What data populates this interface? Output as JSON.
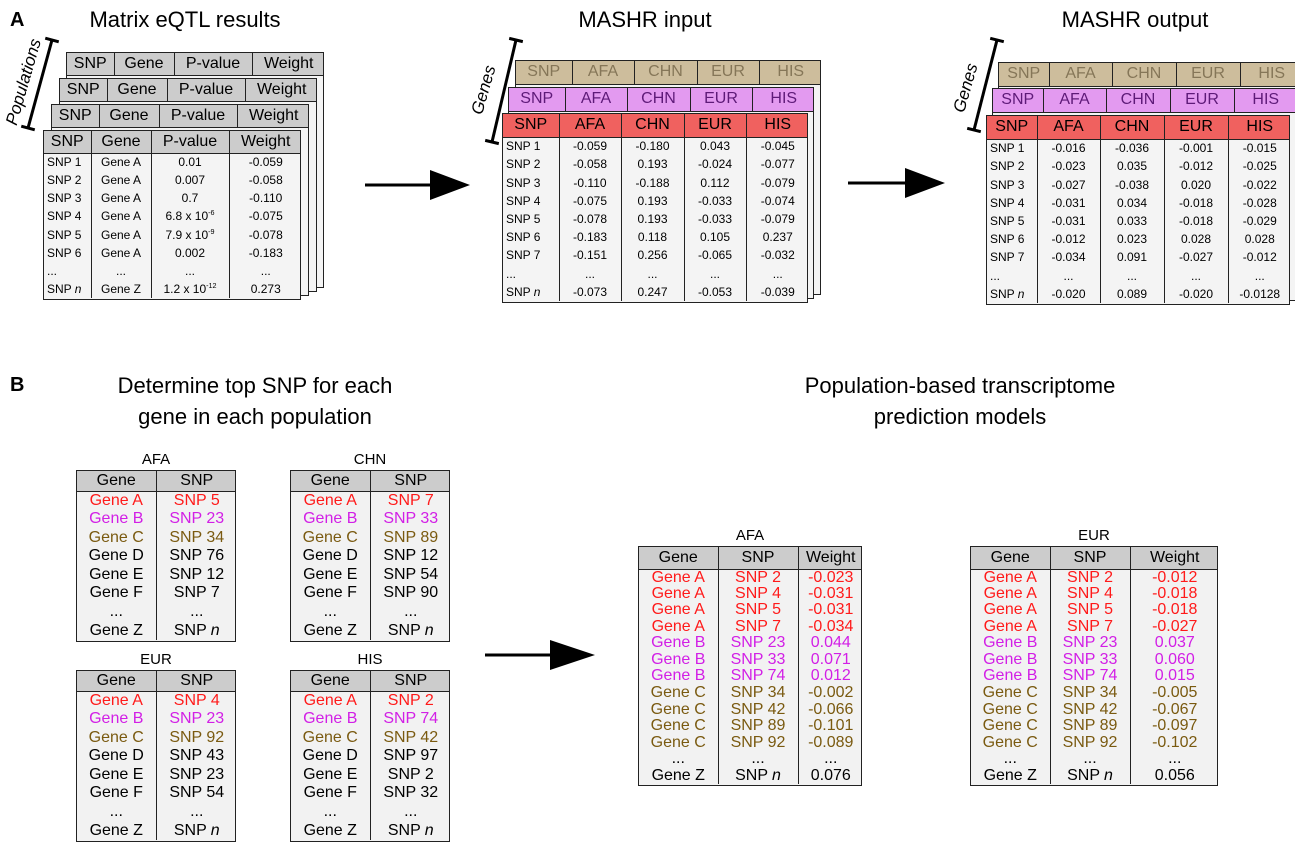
{
  "panel_a": {
    "label": "A",
    "matrix": {
      "title": "Matrix eQTL results",
      "side_label": "Populations",
      "headers": [
        [
          "SNP",
          "Gene",
          "P-value",
          "Weight"
        ],
        [
          "SNP",
          "Gene",
          "P-value",
          "Weight"
        ],
        [
          "SNP",
          "Gene",
          "P-value",
          "Weight"
        ],
        [
          "SNP",
          "Gene",
          "P-value",
          "Weight"
        ]
      ],
      "rows": [
        [
          "SNP 1",
          "Gene A",
          "0.01",
          "-0.059"
        ],
        [
          "SNP 2",
          "Gene A",
          "0.007",
          "-0.058"
        ],
        [
          "SNP 3",
          "Gene A",
          "0.7",
          "-0.110"
        ],
        [
          "SNP 4",
          "Gene A",
          {
            "base": "6.8 x 10",
            "sup": "-6"
          },
          "-0.075"
        ],
        [
          "SNP 5",
          "Gene A",
          {
            "base": "7.9 x 10",
            "sup": "-9"
          },
          "-0.078"
        ],
        [
          "SNP 6",
          "Gene A",
          "0.002",
          "-0.183"
        ],
        [
          "...",
          "...",
          "...",
          "..."
        ],
        [
          {
            "text": "SNP",
            "italic": "n"
          },
          "Gene Z",
          {
            "base": "1.2 x 10",
            "sup": "-12"
          },
          "0.273"
        ]
      ]
    },
    "mashr_input": {
      "title": "MASHR input",
      "side_label": "Genes",
      "headers": [
        [
          "SNP",
          "AFA",
          "CHN",
          "EUR",
          "HIS"
        ],
        [
          "SNP",
          "AFA",
          "CHN",
          "EUR",
          "HIS"
        ],
        [
          "SNP",
          "AFA",
          "CHN",
          "EUR",
          "HIS"
        ]
      ],
      "header_colors": [
        "#cdbd9c",
        "#e39af0",
        "#f0615f"
      ],
      "header_text_colors": [
        "#857658",
        "#5e1a78",
        "#000000"
      ],
      "rows": [
        [
          "SNP 1",
          "-0.059",
          "-0.180",
          "0.043",
          "-0.045"
        ],
        [
          "SNP 2",
          "-0.058",
          "0.193",
          "-0.024",
          "-0.077"
        ],
        [
          "SNP 3",
          "-0.110",
          "-0.188",
          "0.112",
          "-0.079"
        ],
        [
          "SNP 4",
          "-0.075",
          "0.193",
          "-0.033",
          "-0.074"
        ],
        [
          "SNP 5",
          "-0.078",
          "0.193",
          "-0.033",
          "-0.079"
        ],
        [
          "SNP 6",
          "-0.183",
          "0.118",
          "0.105",
          "0.237"
        ],
        [
          "SNP 7",
          "-0.151",
          "0.256",
          "-0.065",
          "-0.032"
        ],
        [
          "...",
          "...",
          "...",
          "...",
          "..."
        ],
        [
          {
            "text": "SNP",
            "italic": "n"
          },
          "-0.073",
          "0.247",
          "-0.053",
          "-0.039"
        ]
      ]
    },
    "mashr_output": {
      "title": "MASHR output",
      "side_label": "Genes",
      "headers": [
        [
          "SNP",
          "AFA",
          "CHN",
          "EUR",
          "HIS"
        ],
        [
          "SNP",
          "AFA",
          "CHN",
          "EUR",
          "HIS"
        ],
        [
          "SNP",
          "AFA",
          "CHN",
          "EUR",
          "HIS"
        ]
      ],
      "header_colors": [
        "#cdbd9c",
        "#e39af0",
        "#f0615f"
      ],
      "header_text_colors": [
        "#857658",
        "#5e1a78",
        "#000000"
      ],
      "rows": [
        [
          "SNP 1",
          "-0.016",
          "-0.036",
          "-0.001",
          "-0.015"
        ],
        [
          "SNP 2",
          "-0.023",
          "0.035",
          "-0.012",
          "-0.025"
        ],
        [
          "SNP 3",
          "-0.027",
          "-0.038",
          "0.020",
          "-0.022"
        ],
        [
          "SNP 4",
          "-0.031",
          "0.034",
          "-0.018",
          "-0.028"
        ],
        [
          "SNP 5",
          "-0.031",
          "0.033",
          "-0.018",
          "-0.029"
        ],
        [
          "SNP 6",
          "-0.012",
          "0.023",
          "0.028",
          "0.028"
        ],
        [
          "SNP 7",
          "-0.034",
          "0.091",
          "-0.027",
          "-0.012"
        ],
        [
          "...",
          "...",
          "...",
          "...",
          "..."
        ],
        [
          {
            "text": "SNP",
            "italic": "n"
          },
          "-0.020",
          "0.089",
          "-0.020",
          "-0.0128"
        ]
      ]
    }
  },
  "panel_b": {
    "label": "B",
    "title_lines": [
      "Determine top SNP for each",
      "gene in each population"
    ],
    "top_snp_tables": [
      {
        "name": "AFA",
        "headers": [
          "Gene",
          "SNP"
        ],
        "rows": [
          [
            "Gene A",
            "SNP 5"
          ],
          [
            "Gene B",
            "SNP 23"
          ],
          [
            "Gene C",
            "SNP 34"
          ],
          [
            "Gene D",
            "SNP 76"
          ],
          [
            "Gene E",
            "SNP 12"
          ],
          [
            "Gene F",
            "SNP 7"
          ],
          [
            "...",
            "..."
          ],
          [
            "Gene Z",
            {
              "text": "SNP",
              "italic": "n"
            }
          ]
        ],
        "row_colors": [
          "#ff1a1a",
          "#d21fe6",
          "#7a5a10",
          "#000000",
          "#000000",
          "#000000",
          "#000000",
          "#000000"
        ]
      },
      {
        "name": "CHN",
        "headers": [
          "Gene",
          "SNP"
        ],
        "rows": [
          [
            "Gene A",
            "SNP 7"
          ],
          [
            "Gene B",
            "SNP 33"
          ],
          [
            "Gene C",
            "SNP 89"
          ],
          [
            "Gene D",
            "SNP 12"
          ],
          [
            "Gene E",
            "SNP 54"
          ],
          [
            "Gene F",
            "SNP 90"
          ],
          [
            "...",
            "..."
          ],
          [
            "Gene Z",
            {
              "text": "SNP",
              "italic": "n"
            }
          ]
        ],
        "row_colors": [
          "#ff1a1a",
          "#d21fe6",
          "#7a5a10",
          "#000000",
          "#000000",
          "#000000",
          "#000000",
          "#000000"
        ]
      },
      {
        "name": "EUR",
        "headers": [
          "Gene",
          "SNP"
        ],
        "rows": [
          [
            "Gene A",
            "SNP 4"
          ],
          [
            "Gene B",
            "SNP 23"
          ],
          [
            "Gene C",
            "SNP 92"
          ],
          [
            "Gene D",
            "SNP 43"
          ],
          [
            "Gene E",
            "SNP 23"
          ],
          [
            "Gene F",
            "SNP 54"
          ],
          [
            "...",
            "..."
          ],
          [
            "Gene Z",
            {
              "text": "SNP",
              "italic": "n"
            }
          ]
        ],
        "row_colors": [
          "#ff1a1a",
          "#d21fe6",
          "#7a5a10",
          "#000000",
          "#000000",
          "#000000",
          "#000000",
          "#000000"
        ]
      },
      {
        "name": "HIS",
        "headers": [
          "Gene",
          "SNP"
        ],
        "rows": [
          [
            "Gene A",
            "SNP 2"
          ],
          [
            "Gene B",
            "SNP 74"
          ],
          [
            "Gene C",
            "SNP 42"
          ],
          [
            "Gene D",
            "SNP 97"
          ],
          [
            "Gene E",
            "SNP 2"
          ],
          [
            "Gene F",
            "SNP 32"
          ],
          [
            "...",
            "..."
          ],
          [
            "Gene Z",
            {
              "text": "SNP",
              "italic": "n"
            }
          ]
        ],
        "row_colors": [
          "#ff1a1a",
          "#d21fe6",
          "#7a5a10",
          "#000000",
          "#000000",
          "#000000",
          "#000000",
          "#000000"
        ]
      }
    ],
    "models_title_lines": [
      "Population-based transcriptome",
      "prediction models"
    ],
    "model_tables": [
      {
        "name": "AFA",
        "headers": [
          "Gene",
          "SNP",
          "Weight"
        ],
        "rows": [
          [
            "Gene A",
            "SNP 2",
            "-0.023"
          ],
          [
            "Gene A",
            "SNP 4",
            "-0.031"
          ],
          [
            "Gene A",
            "SNP 5",
            "-0.031"
          ],
          [
            "Gene A",
            "SNP 7",
            "-0.034"
          ],
          [
            "Gene B",
            "SNP 23",
            "0.044"
          ],
          [
            "Gene B",
            "SNP 33",
            "0.071"
          ],
          [
            "Gene B",
            "SNP 74",
            "0.012"
          ],
          [
            "Gene C",
            "SNP 34",
            "-0.002"
          ],
          [
            "Gene C",
            "SNP 42",
            "-0.066"
          ],
          [
            "Gene C",
            "SNP 89",
            "-0.101"
          ],
          [
            "Gene C",
            "SNP 92",
            "-0.089"
          ],
          [
            "...",
            "...",
            "..."
          ],
          [
            "Gene Z",
            {
              "text": "SNP",
              "italic": "n"
            },
            "0.076"
          ]
        ],
        "row_colors": [
          "#ff1a1a",
          "#ff1a1a",
          "#ff1a1a",
          "#ff1a1a",
          "#d21fe6",
          "#d21fe6",
          "#d21fe6",
          "#7a5a10",
          "#7a5a10",
          "#7a5a10",
          "#7a5a10",
          "#000000",
          "#000000"
        ]
      },
      {
        "name": "EUR",
        "headers": [
          "Gene",
          "SNP",
          "Weight"
        ],
        "rows": [
          [
            "Gene A",
            "SNP 2",
            "-0.012"
          ],
          [
            "Gene A",
            "SNP 4",
            "-0.018"
          ],
          [
            "Gene A",
            "SNP 5",
            "-0.018"
          ],
          [
            "Gene A",
            "SNP 7",
            "-0.027"
          ],
          [
            "Gene B",
            "SNP 23",
            "0.037"
          ],
          [
            "Gene B",
            "SNP 33",
            "0.060"
          ],
          [
            "Gene B",
            "SNP 74",
            "0.015"
          ],
          [
            "Gene C",
            "SNP 34",
            "-0.005"
          ],
          [
            "Gene C",
            "SNP 42",
            "-0.067"
          ],
          [
            "Gene C",
            "SNP 89",
            "-0.097"
          ],
          [
            "Gene C",
            "SNP 92",
            "-0.102"
          ],
          [
            "...",
            "...",
            "..."
          ],
          [
            "Gene Z",
            {
              "text": "SNP",
              "italic": "n"
            },
            "0.056"
          ]
        ],
        "row_colors": [
          "#ff1a1a",
          "#ff1a1a",
          "#ff1a1a",
          "#ff1a1a",
          "#d21fe6",
          "#d21fe6",
          "#d21fe6",
          "#7a5a10",
          "#7a5a10",
          "#7a5a10",
          "#7a5a10",
          "#000000",
          "#000000"
        ]
      }
    ]
  }
}
